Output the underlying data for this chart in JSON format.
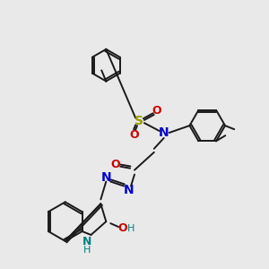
{
  "bg_color": "#e9e9e9",
  "bond_color": "#1a1a1a",
  "figsize": [
    3.0,
    3.0
  ],
  "dpi": 100,
  "colors": {
    "S": "#999900",
    "O": "#cc0000",
    "N": "#0000cc",
    "NH": "#008080",
    "bond": "#1a1a1a"
  }
}
